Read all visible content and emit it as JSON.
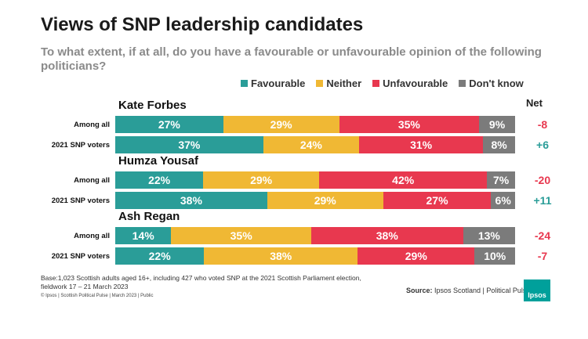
{
  "title": "Views of SNP leadership candidates",
  "subtitle": "To what extent, if at all, do you have a favourable or unfavourable opinion of the following politicians?",
  "legend": [
    {
      "label": "Favourable",
      "color": "#2a9d98"
    },
    {
      "label": "Neither",
      "color": "#f0b834"
    },
    {
      "label": "Unfavourable",
      "color": "#e8384f"
    },
    {
      "label": "Don't know",
      "color": "#7b7b7b"
    }
  ],
  "net_header": "Net",
  "chart_data": {
    "type": "bar",
    "orientation": "horizontal",
    "stacked": true,
    "title": "Views of SNP leadership candidates",
    "series_names": [
      "Favourable",
      "Neither",
      "Unfavourable",
      "Don't know"
    ],
    "groups": [
      {
        "name": "Kate Forbes",
        "rows": [
          {
            "label": "Among all",
            "values": [
              27,
              29,
              35,
              9
            ],
            "net": "-8",
            "net_color": "#e8384f"
          },
          {
            "label": "2021 SNP voters",
            "values": [
              37,
              24,
              31,
              8
            ],
            "net": "+6",
            "net_color": "#2a9d98"
          }
        ]
      },
      {
        "name": "Humza Yousaf",
        "rows": [
          {
            "label": "Among all",
            "values": [
              22,
              29,
              42,
              7
            ],
            "net": "-20",
            "net_color": "#e8384f"
          },
          {
            "label": "2021 SNP voters",
            "values": [
              38,
              29,
              27,
              6
            ],
            "net": "+11",
            "net_color": "#2a9d98"
          }
        ]
      },
      {
        "name": "Ash Regan",
        "rows": [
          {
            "label": "Among all",
            "values": [
              14,
              35,
              38,
              13
            ],
            "net": "-24",
            "net_color": "#e8384f"
          },
          {
            "label": "2021 SNP voters",
            "values": [
              22,
              38,
              29,
              10
            ],
            "net": "-7",
            "net_color": "#e8384f"
          }
        ]
      }
    ]
  },
  "footnote": "Base:1,023 Scottish adults aged 16+, including 427 who voted SNP at the 2021 Scottish Parliament election, fieldwork 17 – 21 March 2023",
  "copyright": "© Ipsos | Scottish Political Pulse | March 2023 | Public",
  "source_label": "Source:",
  "source_text": " Ipsos Scotland | Political Pulse",
  "logo_text": "Ipsos"
}
